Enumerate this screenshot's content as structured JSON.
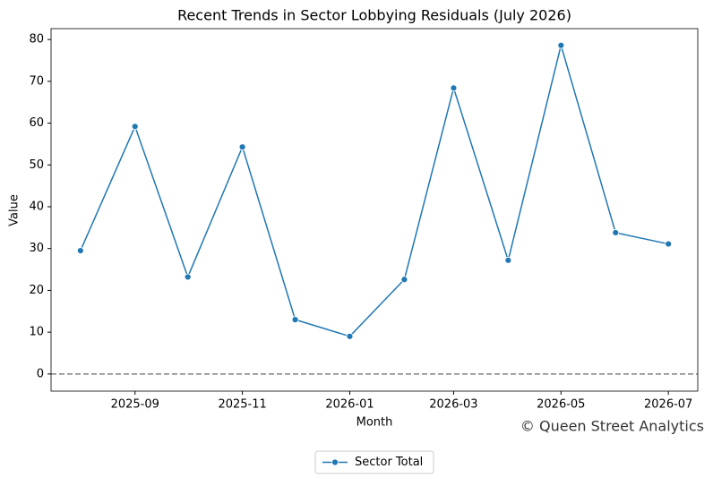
{
  "chart_data": {
    "type": "line",
    "title": "Recent Trends in Sector Lobbying Residuals (July 2026)",
    "x_label": "Month",
    "y_label": "Value",
    "x": [
      "2025-08",
      "2025-09",
      "2025-10",
      "2025-11",
      "2025-12",
      "2026-01",
      "2026-02",
      "2026-03",
      "2026-04",
      "2026-05",
      "2026-06",
      "2026-07"
    ],
    "series": [
      {
        "name": "Sector Total",
        "color": "#1f77b4",
        "values": [
          29.5,
          59.2,
          23.2,
          54.3,
          13.0,
          9.0,
          22.6,
          68.4,
          27.2,
          78.6,
          33.8,
          31.1
        ]
      }
    ],
    "ylim": [
      -4.1,
      82.6
    ],
    "yticks": [
      0,
      10,
      20,
      30,
      40,
      50,
      60,
      70,
      80
    ],
    "xticks": [
      "2025-09",
      "2025-11",
      "2026-01",
      "2026-03",
      "2026-05",
      "2026-07"
    ],
    "hline": {
      "value": 0,
      "color": "#808080"
    },
    "watermark": "© Queen Street Analytics",
    "legend": "lower center"
  }
}
